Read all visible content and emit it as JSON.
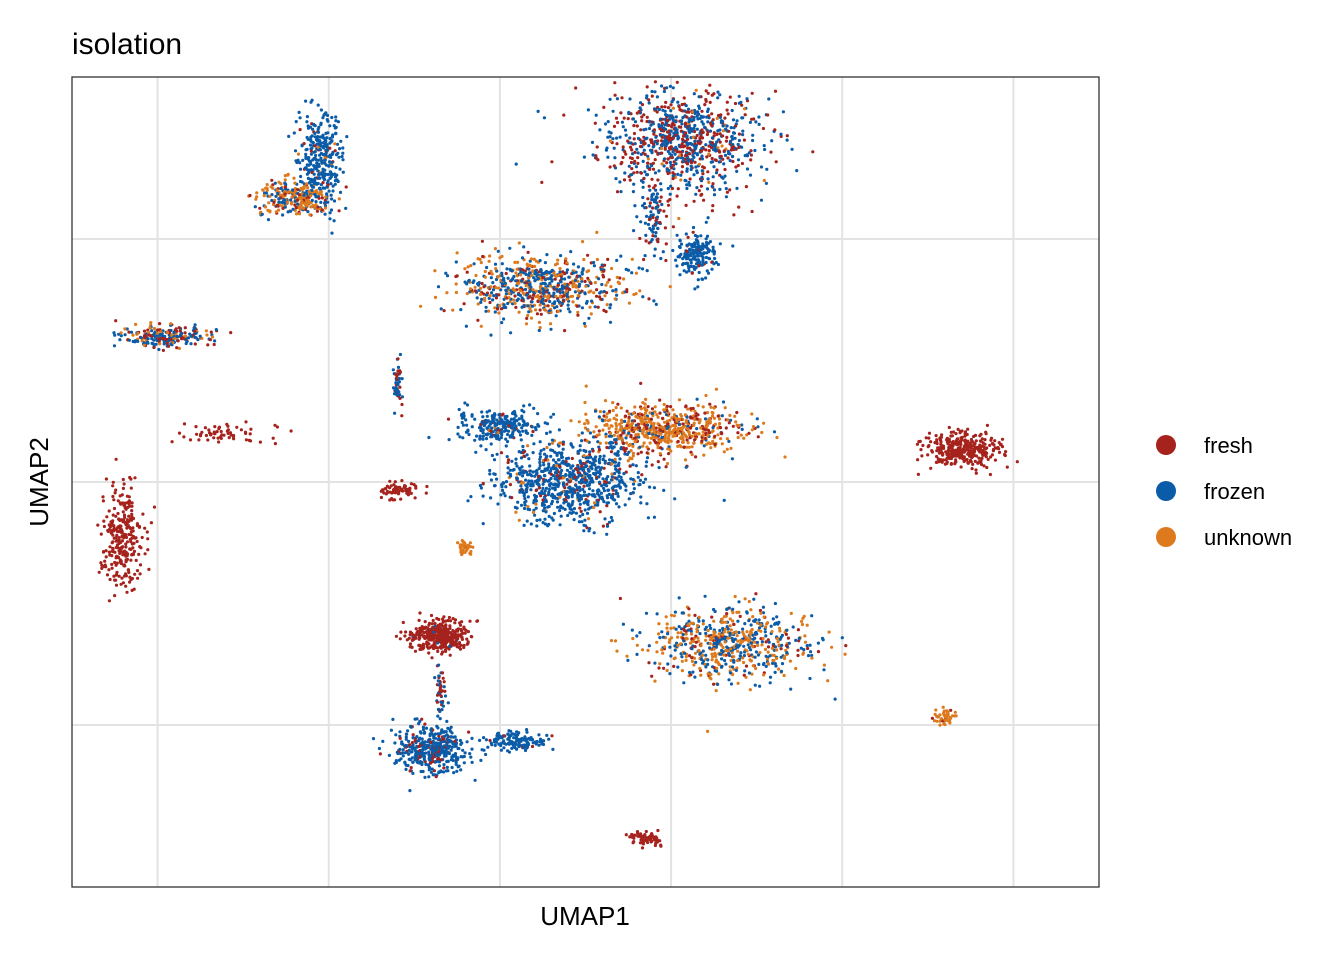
{
  "chart_data": {
    "type": "scatter",
    "title": "isolation",
    "xlabel": "UMAP1",
    "ylabel": "UMAP2",
    "xlim": [
      -1,
      11
    ],
    "ylim": [
      0,
      10
    ],
    "grid": true,
    "tick_labels_shown": false,
    "legend_position": "right",
    "colors": {
      "fresh": "#A6221C",
      "frozen": "#0B5CA8",
      "unknown": "#DD7A1E"
    },
    "legend": [
      "fresh",
      "frozen",
      "unknown"
    ],
    "clusters": [
      {
        "cx": 6.1,
        "cy": 9.2,
        "rx": 0.95,
        "ry": 0.65,
        "n": 900,
        "mix": {
          "fresh": 0.42,
          "frozen": 0.55,
          "unknown": 0.03
        }
      },
      {
        "cx": 4.5,
        "cy": 7.4,
        "rx": 0.95,
        "ry": 0.4,
        "n": 700,
        "mix": {
          "fresh": 0.2,
          "frozen": 0.45,
          "unknown": 0.35
        }
      },
      {
        "cx": 6.3,
        "cy": 7.8,
        "rx": 0.22,
        "ry": 0.28,
        "n": 180,
        "mix": {
          "fresh": 0.05,
          "frozen": 0.95,
          "unknown": 0.0
        }
      },
      {
        "cx": 1.9,
        "cy": 9.0,
        "rx": 0.25,
        "ry": 0.6,
        "n": 320,
        "mix": {
          "fresh": 0.05,
          "frozen": 0.9,
          "unknown": 0.05
        }
      },
      {
        "cx": 1.6,
        "cy": 8.5,
        "rx": 0.45,
        "ry": 0.22,
        "n": 260,
        "mix": {
          "fresh": 0.15,
          "frozen": 0.35,
          "unknown": 0.5
        }
      },
      {
        "cx": 0.1,
        "cy": 6.8,
        "rx": 0.5,
        "ry": 0.12,
        "n": 230,
        "mix": {
          "fresh": 0.35,
          "frozen": 0.45,
          "unknown": 0.2
        }
      },
      {
        "cx": 4.8,
        "cy": 5.0,
        "rx": 0.85,
        "ry": 0.5,
        "n": 800,
        "mix": {
          "fresh": 0.1,
          "frozen": 0.85,
          "unknown": 0.05
        }
      },
      {
        "cx": 4.0,
        "cy": 5.7,
        "rx": 0.5,
        "ry": 0.2,
        "n": 250,
        "mix": {
          "fresh": 0.05,
          "frozen": 0.92,
          "unknown": 0.03
        }
      },
      {
        "cx": 5.9,
        "cy": 5.65,
        "rx": 0.9,
        "ry": 0.3,
        "n": 650,
        "mix": {
          "fresh": 0.25,
          "frozen": 0.1,
          "unknown": 0.65
        }
      },
      {
        "cx": 9.4,
        "cy": 5.4,
        "rx": 0.45,
        "ry": 0.22,
        "n": 330,
        "mix": {
          "fresh": 1.0,
          "frozen": 0.0,
          "unknown": 0.0
        }
      },
      {
        "cx": 6.7,
        "cy": 3.0,
        "rx": 0.95,
        "ry": 0.45,
        "n": 650,
        "mix": {
          "fresh": 0.1,
          "frozen": 0.4,
          "unknown": 0.5
        }
      },
      {
        "cx": 3.3,
        "cy": 3.1,
        "rx": 0.35,
        "ry": 0.18,
        "n": 360,
        "mix": {
          "fresh": 0.97,
          "frozen": 0.03,
          "unknown": 0.0
        }
      },
      {
        "cx": 3.2,
        "cy": 1.7,
        "rx": 0.45,
        "ry": 0.3,
        "n": 420,
        "mix": {
          "fresh": 0.15,
          "frozen": 0.85,
          "unknown": 0.0
        }
      },
      {
        "cx": 4.2,
        "cy": 1.8,
        "rx": 0.35,
        "ry": 0.12,
        "n": 140,
        "mix": {
          "fresh": 0.05,
          "frozen": 0.95,
          "unknown": 0.0
        }
      },
      {
        "cx": 5.7,
        "cy": 0.6,
        "rx": 0.2,
        "ry": 0.08,
        "n": 70,
        "mix": {
          "fresh": 1.0,
          "frozen": 0.0,
          "unknown": 0.0
        }
      },
      {
        "cx": 9.2,
        "cy": 2.1,
        "rx": 0.13,
        "ry": 0.1,
        "n": 50,
        "mix": {
          "fresh": 0.1,
          "frozen": 0.0,
          "unknown": 0.9
        }
      },
      {
        "cx": 3.6,
        "cy": 4.2,
        "rx": 0.08,
        "ry": 0.08,
        "n": 35,
        "mix": {
          "fresh": 0.1,
          "frozen": 0.0,
          "unknown": 0.9
        }
      },
      {
        "cx": -0.4,
        "cy": 4.3,
        "rx": 0.22,
        "ry": 0.65,
        "n": 280,
        "mix": {
          "fresh": 1.0,
          "frozen": 0.0,
          "unknown": 0.0
        }
      },
      {
        "cx": 0.8,
        "cy": 5.6,
        "rx": 0.6,
        "ry": 0.12,
        "n": 60,
        "mix": {
          "fresh": 1.0,
          "frozen": 0.0,
          "unknown": 0.0
        }
      },
      {
        "cx": 2.8,
        "cy": 4.9,
        "rx": 0.25,
        "ry": 0.1,
        "n": 70,
        "mix": {
          "fresh": 1.0,
          "frozen": 0.0,
          "unknown": 0.0
        }
      },
      {
        "cx": 2.8,
        "cy": 6.2,
        "rx": 0.05,
        "ry": 0.3,
        "n": 50,
        "mix": {
          "fresh": 0.6,
          "frozen": 0.4,
          "unknown": 0.0
        }
      },
      {
        "cx": 5.8,
        "cy": 8.3,
        "rx": 0.12,
        "ry": 0.5,
        "n": 80,
        "mix": {
          "fresh": 0.3,
          "frozen": 0.7,
          "unknown": 0.0
        }
      },
      {
        "cx": 3.3,
        "cy": 2.4,
        "rx": 0.05,
        "ry": 0.35,
        "n": 50,
        "mix": {
          "fresh": 0.5,
          "frozen": 0.5,
          "unknown": 0.0
        }
      }
    ]
  }
}
